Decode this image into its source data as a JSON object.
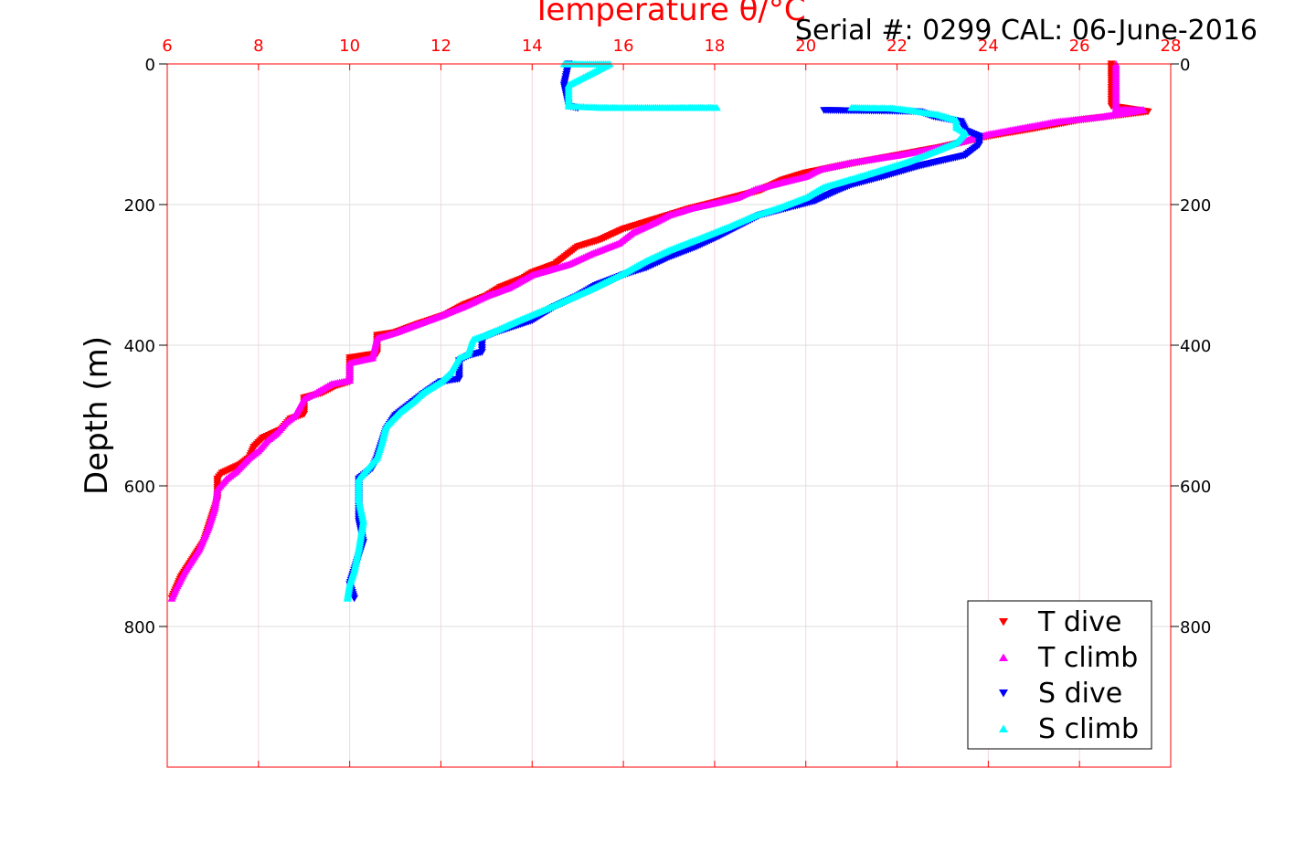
{
  "chart_data": {
    "type": "scatter",
    "title": "Temperature θ/°C",
    "annotation": "Serial #: 0299 CAL: 06-June-2016",
    "xlabel": "Temperature θ/°C",
    "ylabel": "Depth (m)",
    "xlim": [
      6,
      28
    ],
    "ylim": [
      0,
      1000
    ],
    "y_reversed": true,
    "x_ticks": [
      6,
      8,
      10,
      12,
      14,
      16,
      18,
      20,
      22,
      24,
      26,
      28
    ],
    "y_ticks": [
      0,
      200,
      400,
      600,
      800
    ],
    "x_tick_labels": [
      "6",
      "8",
      "10",
      "12",
      "14",
      "16",
      "18",
      "20",
      "22",
      "24",
      "26",
      "28"
    ],
    "y_tick_labels": [
      "0",
      "200",
      "400",
      "600",
      "800"
    ],
    "grid": true,
    "legend_position": "bottom-right",
    "series": [
      {
        "name": "T dive",
        "color": "#ff0000",
        "marker": "triangle-down",
        "points": [
          [
            26.7,
            0
          ],
          [
            26.7,
            20
          ],
          [
            26.7,
            40
          ],
          [
            26.7,
            60
          ],
          [
            27.5,
            68
          ],
          [
            26,
            80
          ],
          [
            25,
            92
          ],
          [
            24,
            103
          ],
          [
            23,
            118
          ],
          [
            22,
            130
          ],
          [
            21,
            142
          ],
          [
            20,
            155
          ],
          [
            19.5,
            165
          ],
          [
            19,
            180
          ],
          [
            18,
            197
          ],
          [
            17.5,
            205
          ],
          [
            17,
            215
          ],
          [
            16.5,
            225
          ],
          [
            16,
            235
          ],
          [
            15.5,
            250
          ],
          [
            15,
            260
          ],
          [
            14.8,
            270
          ],
          [
            14.5,
            285
          ],
          [
            14,
            297
          ],
          [
            13.8,
            305
          ],
          [
            13.3,
            318
          ],
          [
            13,
            330
          ],
          [
            12.5,
            343
          ],
          [
            12.1,
            357
          ],
          [
            11.5,
            370
          ],
          [
            11,
            382
          ],
          [
            10.6,
            386
          ],
          [
            10.6,
            412
          ],
          [
            10,
            418
          ],
          [
            10,
            452
          ],
          [
            9.7,
            458
          ],
          [
            9.4,
            468
          ],
          [
            9,
            475
          ],
          [
            9,
            498
          ],
          [
            8.7,
            505
          ],
          [
            8.5,
            520
          ],
          [
            8.1,
            532
          ],
          [
            7.9,
            545
          ],
          [
            7.8,
            560
          ],
          [
            7.6,
            570
          ],
          [
            7.2,
            582
          ],
          [
            7.1,
            590
          ],
          [
            7.1,
            620
          ],
          [
            7,
            640
          ],
          [
            6.8,
            680
          ],
          [
            6.5,
            710
          ],
          [
            6.3,
            730
          ],
          [
            6.2,
            745
          ],
          [
            6.1,
            760
          ]
        ]
      },
      {
        "name": "T climb",
        "color": "#ff00ff",
        "marker": "triangle-up",
        "points": [
          [
            26.8,
            0
          ],
          [
            26.8,
            30
          ],
          [
            26.8,
            65
          ],
          [
            27.4,
            65
          ],
          [
            26.5,
            75
          ],
          [
            25.5,
            82
          ],
          [
            25,
            88
          ],
          [
            24,
            100
          ],
          [
            23,
            118
          ],
          [
            22,
            130
          ],
          [
            21,
            140
          ],
          [
            20.3,
            150
          ],
          [
            20,
            160
          ],
          [
            19.5,
            168
          ],
          [
            18.9,
            178
          ],
          [
            18.5,
            190
          ],
          [
            18,
            198
          ],
          [
            17.5,
            205
          ],
          [
            17,
            215
          ],
          [
            16.7,
            225
          ],
          [
            16.2,
            240
          ],
          [
            15.9,
            255
          ],
          [
            15.3,
            270
          ],
          [
            14.8,
            285
          ],
          [
            14,
            300
          ],
          [
            13.5,
            318
          ],
          [
            13,
            330
          ],
          [
            12.5,
            345
          ],
          [
            12,
            358
          ],
          [
            11.5,
            370
          ],
          [
            11,
            382
          ],
          [
            10.6,
            390
          ],
          [
            10.5,
            418
          ],
          [
            10,
            425
          ],
          [
            10,
            450
          ],
          [
            9.6,
            455
          ],
          [
            9.2,
            470
          ],
          [
            9,
            476
          ],
          [
            8.8,
            500
          ],
          [
            8.6,
            510
          ],
          [
            8.4,
            525
          ],
          [
            8.2,
            535
          ],
          [
            8,
            550
          ],
          [
            7.8,
            560
          ],
          [
            7.5,
            580
          ],
          [
            7.3,
            590
          ],
          [
            7.1,
            605
          ],
          [
            7.05,
            630
          ],
          [
            6.9,
            660
          ],
          [
            6.7,
            690
          ],
          [
            6.4,
            720
          ],
          [
            6.2,
            745
          ],
          [
            6.1,
            760
          ]
        ]
      },
      {
        "name": "S dive",
        "color": "#0000ff",
        "marker": "triangle-down",
        "points": [
          [
            14.8,
            0
          ],
          [
            14.7,
            30
          ],
          [
            14.8,
            60
          ],
          [
            15,
            63
          ],
          [
            20.4,
            66
          ],
          [
            21.8,
            67
          ],
          [
            22.5,
            68
          ],
          [
            22.8,
            75
          ],
          [
            23.4,
            82
          ],
          [
            23.5,
            95
          ],
          [
            23.8,
            103
          ],
          [
            23.8,
            115
          ],
          [
            23.5,
            130
          ],
          [
            22.5,
            145
          ],
          [
            21.7,
            160
          ],
          [
            21,
            172
          ],
          [
            20.7,
            180
          ],
          [
            20.2,
            195
          ],
          [
            19.6,
            205
          ],
          [
            19,
            215
          ],
          [
            18.7,
            225
          ],
          [
            18.1,
            245
          ],
          [
            17.6,
            260
          ],
          [
            17,
            275
          ],
          [
            16.5,
            290
          ],
          [
            16,
            300
          ],
          [
            15.4,
            315
          ],
          [
            15,
            330
          ],
          [
            14.5,
            345
          ],
          [
            14,
            365
          ],
          [
            13.2,
            382
          ],
          [
            12.9,
            390
          ],
          [
            12.9,
            410
          ],
          [
            12.6,
            415
          ],
          [
            12.4,
            422
          ],
          [
            12.4,
            448
          ],
          [
            12,
            452
          ],
          [
            11.6,
            470
          ],
          [
            11.4,
            480
          ],
          [
            11.2,
            490
          ],
          [
            11,
            500
          ],
          [
            10.8,
            520
          ],
          [
            10.7,
            540
          ],
          [
            10.6,
            560
          ],
          [
            10.5,
            575
          ],
          [
            10.2,
            590
          ],
          [
            10.2,
            620
          ],
          [
            10.2,
            650
          ],
          [
            10.3,
            680
          ],
          [
            10.1,
            720
          ],
          [
            10,
            740
          ],
          [
            10.1,
            760
          ]
        ]
      },
      {
        "name": "S climb",
        "color": "#00ffff",
        "marker": "triangle-up",
        "points": [
          [
            14.7,
            0
          ],
          [
            15.3,
            0
          ],
          [
            15.7,
            0
          ],
          [
            14.8,
            30
          ],
          [
            14.8,
            60
          ],
          [
            15.5,
            62
          ],
          [
            18.05,
            62
          ],
          [
            21,
            62
          ],
          [
            21.9,
            63
          ],
          [
            22.3,
            66
          ],
          [
            22.9,
            72
          ],
          [
            23.3,
            80
          ],
          [
            23.3,
            90
          ],
          [
            23.5,
            98
          ],
          [
            23.3,
            112
          ],
          [
            22.8,
            125
          ],
          [
            22.2,
            140
          ],
          [
            21.2,
            160
          ],
          [
            20.4,
            175
          ],
          [
            20,
            190
          ],
          [
            19.4,
            205
          ],
          [
            18.9,
            215
          ],
          [
            18.3,
            232
          ],
          [
            17.6,
            250
          ],
          [
            17,
            265
          ],
          [
            16.5,
            280
          ],
          [
            16,
            298
          ],
          [
            15.3,
            320
          ],
          [
            14.5,
            343
          ],
          [
            13.7,
            365
          ],
          [
            13,
            385
          ],
          [
            12.7,
            392
          ],
          [
            12.6,
            412
          ],
          [
            12.4,
            418
          ],
          [
            12.2,
            440
          ],
          [
            12,
            452
          ],
          [
            11.6,
            468
          ],
          [
            11.4,
            480
          ],
          [
            11.1,
            495
          ],
          [
            10.8,
            515
          ],
          [
            10.7,
            540
          ],
          [
            10.6,
            560
          ],
          [
            10.4,
            575
          ],
          [
            10.2,
            590
          ],
          [
            10.2,
            620
          ],
          [
            10.3,
            650
          ],
          [
            10.2,
            690
          ],
          [
            10.1,
            720
          ],
          [
            10,
            740
          ],
          [
            9.95,
            760
          ]
        ]
      }
    ]
  }
}
